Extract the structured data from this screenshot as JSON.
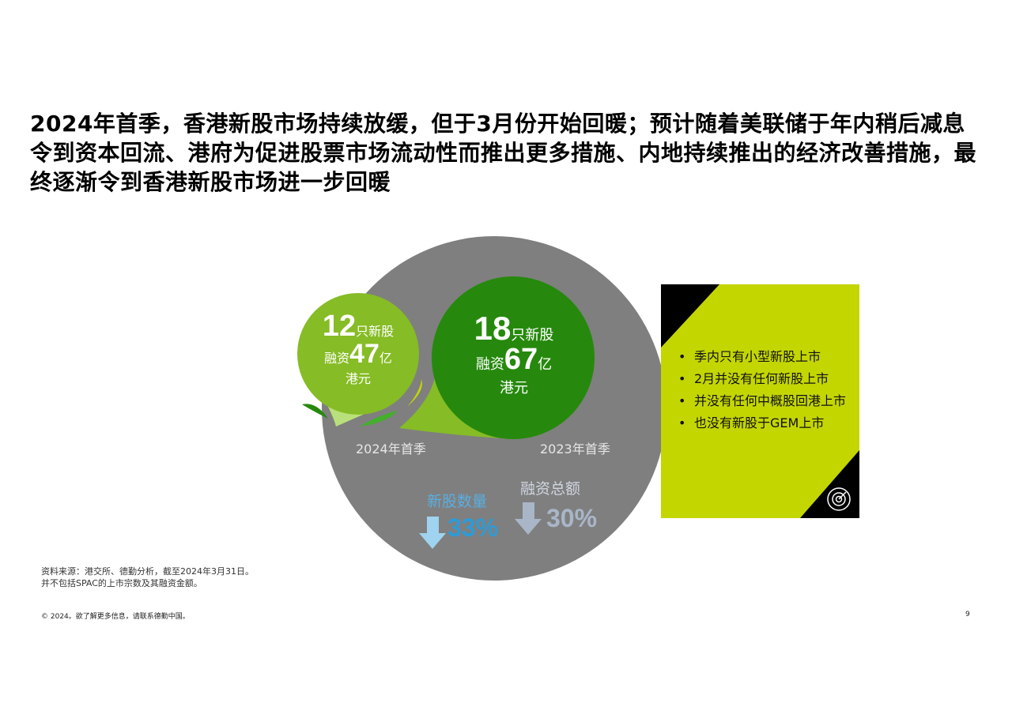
{
  "title": "2024年首季，香港新股市场持续放缓，但于3月份开始回暖；预计随着美联储于年内稍后减息令到资本回流、港府为促进股票市场流动性而推出更多措施、内地持续推出的经济改善措施，最终逐渐令到香港新股市场进一步回暖",
  "bubbles": {
    "q1_2024": {
      "count": "12",
      "count_unit": "只新股",
      "funds_prefix": "融资",
      "funds": "47",
      "funds_unit": "亿",
      "currency": "港元",
      "label": "2024年首季"
    },
    "q1_2023": {
      "count": "18",
      "count_unit": "只新股",
      "funds_prefix": "融资",
      "funds": "67",
      "funds_unit": "亿",
      "currency": "港元",
      "label": "2023年首季"
    }
  },
  "changes": {
    "count": {
      "label": "新股数量",
      "value": "33%",
      "direction": "down",
      "color": "#2e9bd6"
    },
    "funds": {
      "label": "融资总额",
      "value": "30%",
      "direction": "down",
      "color": "#a9b6c8"
    }
  },
  "highlights": {
    "items": [
      "季内只有小型新股上市",
      "2月并没有任何新股上市",
      "并没有任何中概股回港上市",
      "也没有新股于GEM上市"
    ],
    "icon": "target-icon",
    "color": "#c4d600"
  },
  "colors": {
    "gray_circle": "#7f7f7f",
    "light_green": "#86bc25",
    "dark_green": "#26890d"
  },
  "footnotes": [
    "资料来源：港交所、德勤分析，截至2024年3月31日。",
    "并不包括SPAC的上市宗数及其融资金额。"
  ],
  "footer": {
    "copyright": "© 2024。欲了解更多信息，请联系德勤中国。",
    "page_number": "9"
  }
}
